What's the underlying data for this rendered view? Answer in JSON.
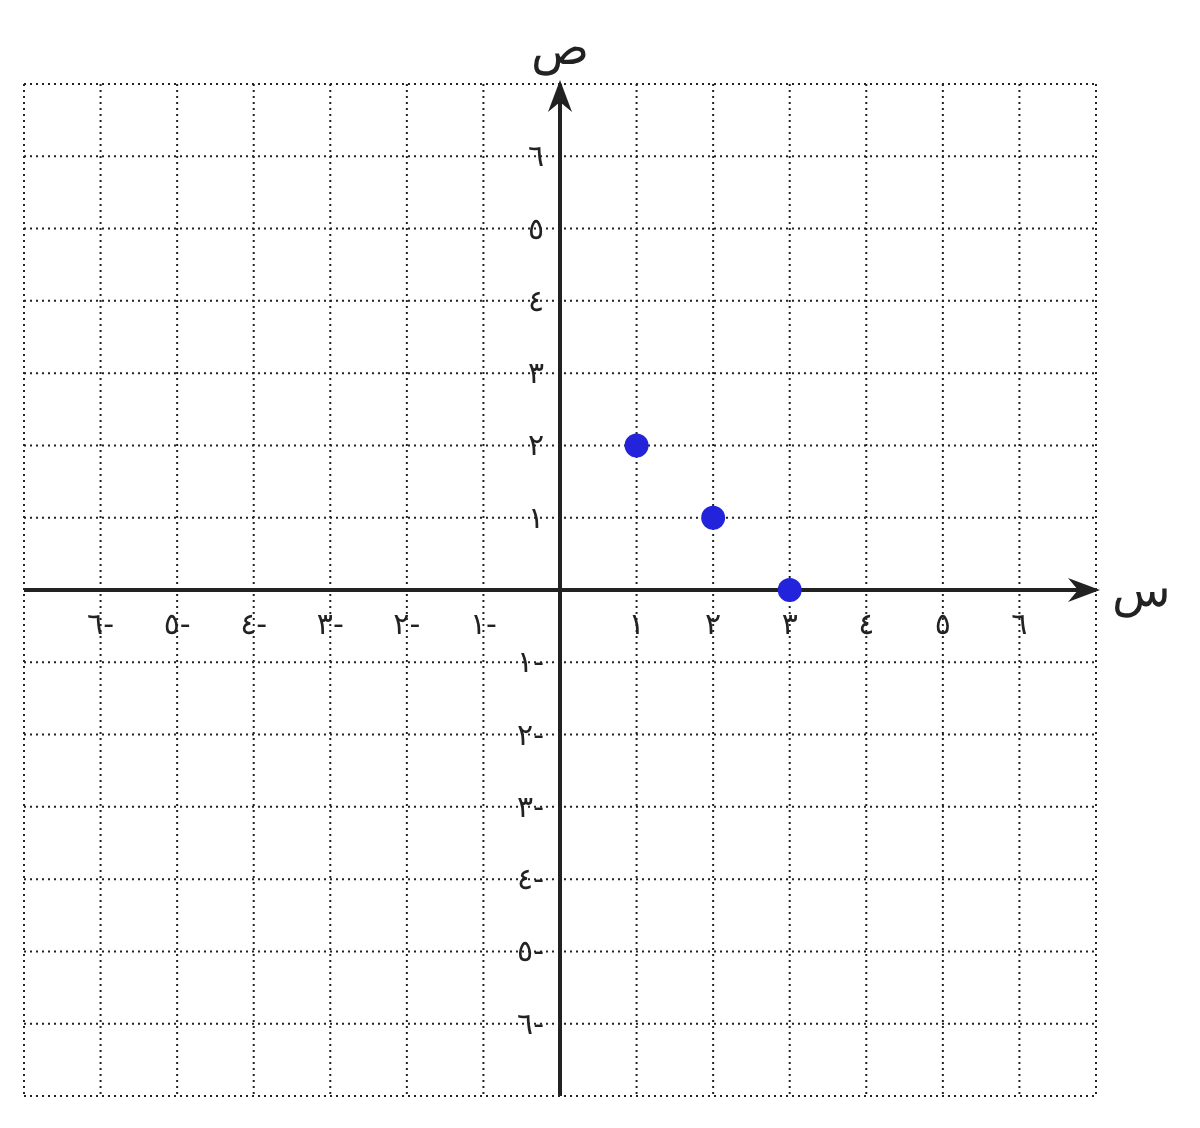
{
  "chart_data": {
    "type": "scatter",
    "xlabel": "س",
    "ylabel": "ص",
    "x": [
      1,
      2,
      3
    ],
    "series": [
      {
        "color": "#2323dc",
        "values": [
          2,
          1,
          0
        ]
      }
    ],
    "xlim": [
      -7,
      7
    ],
    "ylim": [
      -7,
      7
    ],
    "xticks": [
      {
        "value": -7,
        "label": null
      },
      {
        "value": -6,
        "label": "٦-"
      },
      {
        "value": -5,
        "label": "٥-"
      },
      {
        "value": -4,
        "label": "٤-"
      },
      {
        "value": -3,
        "label": "٣-"
      },
      {
        "value": -2,
        "label": "٢-"
      },
      {
        "value": -1,
        "label": "١-"
      },
      {
        "value": 0,
        "label": null
      },
      {
        "value": 1,
        "label": "١"
      },
      {
        "value": 2,
        "label": "٢"
      },
      {
        "value": 3,
        "label": "٣"
      },
      {
        "value": 4,
        "label": "٤"
      },
      {
        "value": 5,
        "label": "٥"
      },
      {
        "value": 6,
        "label": "٦"
      },
      {
        "value": 7,
        "label": null
      }
    ],
    "yticks": [
      {
        "value": -7,
        "label": null
      },
      {
        "value": -6,
        "label": "٦-"
      },
      {
        "value": -5,
        "label": "٥-"
      },
      {
        "value": -4,
        "label": "٤-"
      },
      {
        "value": -3,
        "label": "٣-"
      },
      {
        "value": -2,
        "label": "٢-"
      },
      {
        "value": -1,
        "label": "١-"
      },
      {
        "value": 0,
        "label": null
      },
      {
        "value": 1,
        "label": "١"
      },
      {
        "value": 2,
        "label": "٢"
      },
      {
        "value": 3,
        "label": "٣"
      },
      {
        "value": 4,
        "label": "٤"
      },
      {
        "value": 5,
        "label": "٥"
      },
      {
        "value": 6,
        "label": "٦"
      },
      {
        "value": 7,
        "label": null
      }
    ],
    "grid": true,
    "marker": "circle"
  }
}
